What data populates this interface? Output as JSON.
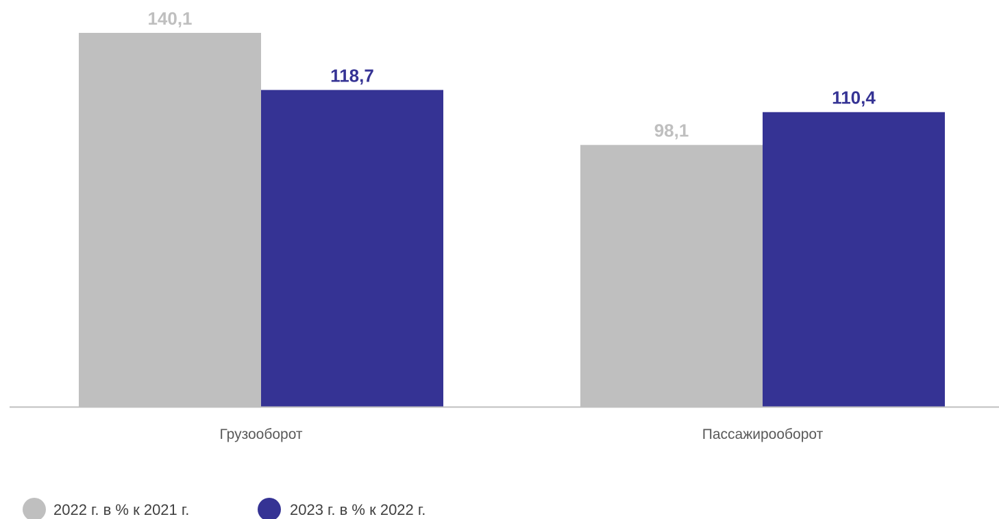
{
  "chart_data": {
    "type": "bar",
    "categories": [
      "Грузооборот",
      "Пассажирооборот"
    ],
    "series": [
      {
        "name": "2022 г. в % к 2021 г.",
        "values": [
          140.1,
          98.1
        ],
        "value_labels": [
          "140,1",
          "98,1"
        ],
        "color": "#bfbfbf"
      },
      {
        "name": "2023 г. в % к 2022 г.",
        "values": [
          118.7,
          110.4
        ],
        "value_labels": [
          "118,7",
          "110,4"
        ],
        "color": "#353394"
      }
    ],
    "ylim": [
      0,
      140.1
    ],
    "grid": false,
    "legend_position": "bottom-left",
    "axis_color": "#bfbfbf"
  }
}
